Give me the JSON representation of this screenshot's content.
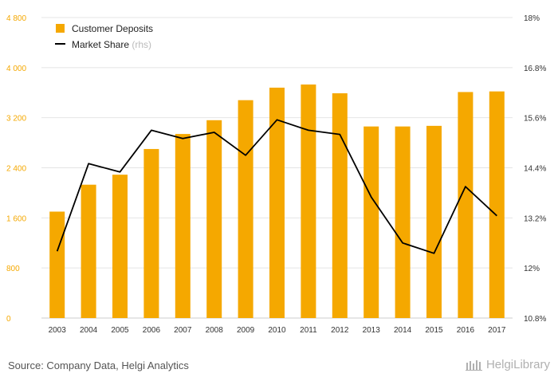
{
  "chart_data": {
    "type": "bar",
    "categories": [
      "2003",
      "2004",
      "2005",
      "2006",
      "2007",
      "2008",
      "2009",
      "2010",
      "2011",
      "2012",
      "2013",
      "2014",
      "2015",
      "2016",
      "2017"
    ],
    "series": [
      {
        "name": "Customer Deposits",
        "type": "bar",
        "axis": "left",
        "color": "#f5a800",
        "values": [
          1700,
          2130,
          2290,
          2700,
          2940,
          3160,
          3480,
          3680,
          3730,
          3590,
          3060,
          3060,
          3070,
          3610,
          3620
        ]
      },
      {
        "name": "Market Share",
        "name_suffix": "(rhs)",
        "type": "line",
        "axis": "right",
        "color": "#000000",
        "values": [
          12.4,
          14.5,
          14.3,
          15.3,
          15.1,
          15.25,
          14.7,
          15.55,
          15.3,
          15.2,
          13.7,
          12.6,
          12.35,
          13.95,
          13.25
        ]
      }
    ],
    "y_left": {
      "ylim": [
        0,
        4800
      ],
      "ticks": [
        0,
        800,
        1600,
        2400,
        3200,
        4000,
        4800
      ],
      "tick_labels": [
        "0",
        "800",
        "1 600",
        "2 400",
        "3 200",
        "4 000",
        "4 800"
      ]
    },
    "y_right": {
      "ylim": [
        10.8,
        18
      ],
      "ticks": [
        10.8,
        12,
        13.2,
        14.4,
        15.6,
        16.8,
        18
      ],
      "tick_labels": [
        "10.8%",
        "12%",
        "13.2%",
        "14.4%",
        "15.6%",
        "16.8%",
        "18%"
      ]
    },
    "grid": true,
    "legend": "top-left"
  },
  "footer": {
    "source": "Source: Company Data, Helgi Analytics",
    "logo_text": "HelgiLibrary"
  }
}
